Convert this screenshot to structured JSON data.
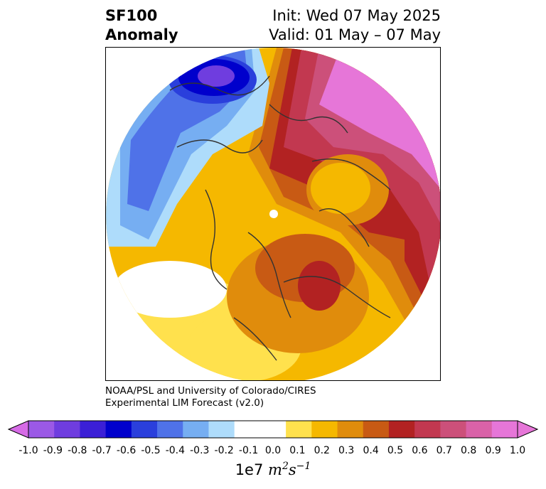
{
  "title": {
    "variable": "SF100",
    "kind": "Anomaly",
    "init": "Init: Wed 07 May 2025",
    "valid": "Valid: 01 May – 07 May"
  },
  "credit": {
    "line1": "NOAA/PSL and University of Colorado/CIRES",
    "line2": "Experimental LIM Forecast (v2.0)"
  },
  "colorbar": {
    "ticks": [
      "-1.0",
      "-0.9",
      "-0.8",
      "-0.7",
      "-0.6",
      "-0.5",
      "-0.4",
      "-0.3",
      "-0.2",
      "-0.1",
      "0.0",
      "0.1",
      "0.2",
      "0.3",
      "0.4",
      "0.5",
      "0.6",
      "0.7",
      "0.8",
      "0.9",
      "1.0"
    ],
    "colors": [
      "#9b59e6",
      "#6f3ddf",
      "#3b1fd6",
      "#0000cc",
      "#2a3fdc",
      "#4f72e8",
      "#76aef2",
      "#aedcfb",
      "#ffffff",
      "#ffffff",
      "#ffe14d",
      "#f5b800",
      "#e08c0c",
      "#c85a14",
      "#b22222",
      "#c23850",
      "#cc507a",
      "#d962a8",
      "#e676d8"
    ],
    "under_color": "#d66be6",
    "over_color": "#e676d8",
    "label_prefix": "1e7",
    "label_units": "m",
    "label_units_sup1": "2",
    "label_units_s": "s",
    "label_units_sup2": "−1"
  }
}
